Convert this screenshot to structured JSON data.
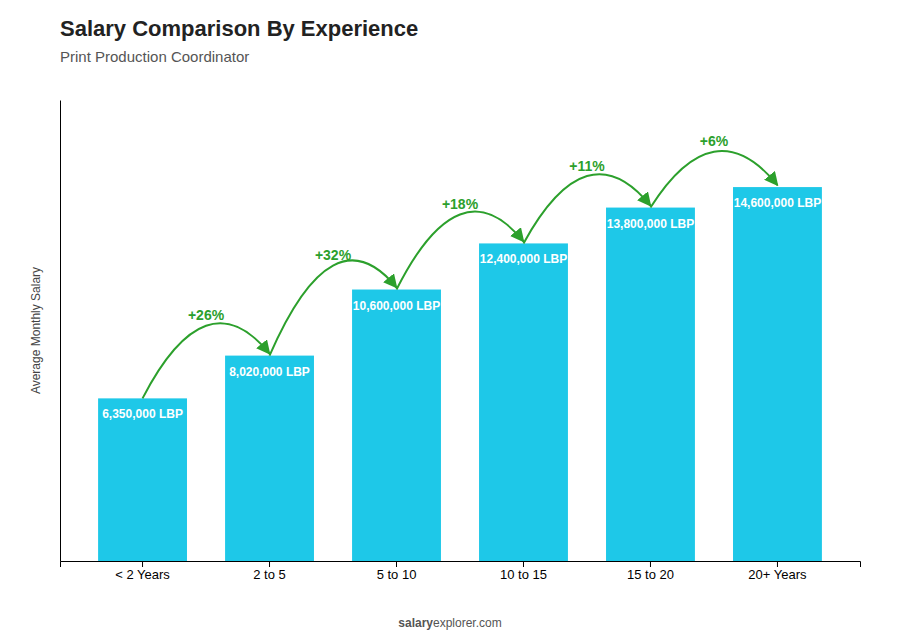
{
  "chart_data": {
    "type": "bar",
    "title": "Salary Comparison By Experience",
    "subtitle": "Print Production Coordinator",
    "ylabel": "Average Monthly Salary",
    "categories": [
      "< 2 Years",
      "2 to 5",
      "5 to 10",
      "10 to 15",
      "15 to 20",
      "20+ Years"
    ],
    "values": [
      6350000,
      8020000,
      10600000,
      12400000,
      13800000,
      14600000
    ],
    "value_labels": [
      "6,350,000 LBP",
      "8,020,000 LBP",
      "10,600,000 LBP",
      "12,400,000 LBP",
      "13,800,000 LBP",
      "14,600,000 LBP"
    ],
    "data_labels": true,
    "annotations": [
      "+26%",
      "+32%",
      "+18%",
      "+11%",
      "+6%"
    ],
    "footer": [
      "salary",
      "explorer.com"
    ],
    "color": "#1EC8E8",
    "ylim": [
      0,
      18000000
    ],
    "grid": false,
    "tick_labels": "x"
  }
}
